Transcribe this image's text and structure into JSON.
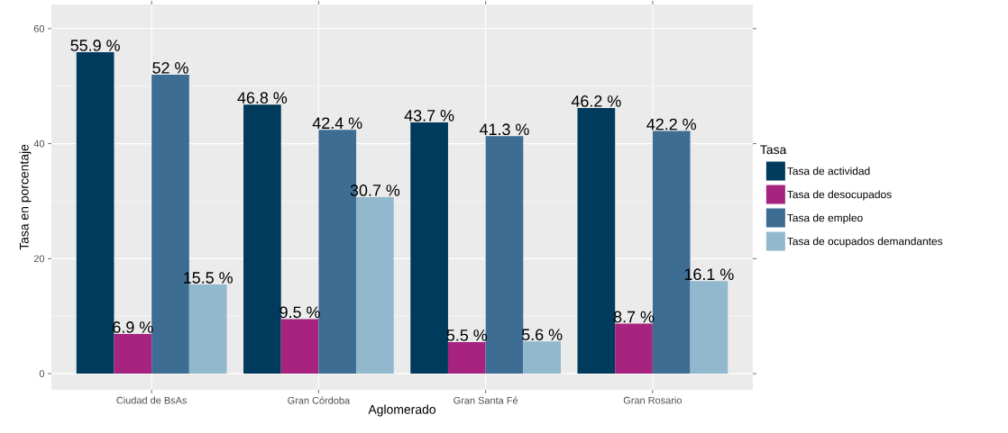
{
  "chart_data": {
    "type": "bar",
    "xlabel": "Aglomerado",
    "ylabel": "Tasa en porcentaje",
    "legend_title": "Tasa",
    "categories": [
      "Ciudad de BsAs",
      "Gran Córdoba",
      "Gran Santa Fé",
      "Gran Rosario"
    ],
    "series": [
      {
        "name": "Tasa de actividad",
        "color": "#003a5c",
        "values": [
          55.9,
          46.8,
          43.7,
          46.2
        ],
        "value_labels": [
          "55.9 %",
          "46.8 %",
          "43.7 %",
          "46.2 %"
        ]
      },
      {
        "name": "Tasa de desocupados",
        "color": "#a6247f",
        "values": [
          6.9,
          9.5,
          5.5,
          8.7
        ],
        "value_labels": [
          "6.9 %",
          "9.5 %",
          "5.5 %",
          "8.7 %"
        ]
      },
      {
        "name": "Tasa de empleo",
        "color": "#3e6d93",
        "values": [
          52,
          42.4,
          41.3,
          42.2
        ],
        "value_labels": [
          "52 %",
          "42.4 %",
          "41.3 %",
          "42.2 %"
        ]
      },
      {
        "name": "Tasa de ocupados demandantes",
        "color": "#92b8ce",
        "values": [
          15.5,
          30.7,
          5.6,
          16.1
        ],
        "value_labels": [
          "15.5 %",
          "30.7 %",
          "5.6 %",
          "16.1 %"
        ]
      }
    ],
    "ylim": [
      -2.8,
      64.2
    ],
    "yticks": [
      0,
      20,
      40,
      60
    ],
    "grid": true,
    "legend": "right"
  }
}
